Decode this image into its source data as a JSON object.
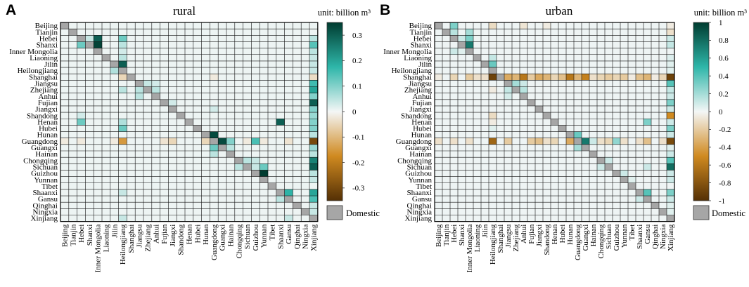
{
  "colors": {
    "domestic": "#a6a6a6",
    "grid": "#111111",
    "neg_max": "#543005",
    "neg_mid": "#d08a20",
    "zero": "#f4f6f6",
    "pos_mid": "#2eb6a9",
    "pos_max": "#003c30"
  },
  "legend": {
    "domestic_label": "Domestic"
  },
  "chart_data": [
    {
      "panel": "A",
      "title": "rural",
      "type": "heatmap",
      "unit": "unit: billion m³",
      "colorbar": {
        "min": -0.35,
        "max": 0.35,
        "ticks": [
          0.3,
          0.2,
          0.1,
          0,
          -0.1,
          -0.2,
          -0.3
        ],
        "tick_labels": [
          "0.3",
          "0.2",
          "0.1",
          "0",
          "-0.1",
          "-0.2",
          "-0.3"
        ]
      },
      "row_labels": [
        "Beijing",
        "Tianjin",
        "Hebei",
        "Shanxi",
        "Inner Mongolia",
        "Liaoning",
        "Jilin",
        "Heilongjiang",
        "Shanghai",
        "Jiangsu",
        "Zhejiang",
        "Anhui",
        "Fujian",
        "Jiangxi",
        "Shandong",
        "Henan",
        "Hubei",
        "Hunan",
        "Guangdong",
        "Guangxi",
        "Hainan",
        "Chongqing",
        "Sichuan",
        "Guizhou",
        "Yunnan",
        "Tibet",
        "Shaanxi",
        "Gansu",
        "Qinghai",
        "Ningxia",
        "Xinjiang"
      ],
      "col_labels": [
        "Beijing",
        "Tianjin",
        "Hebei",
        "Shanxi",
        "Inner Mongolia",
        "Liaoning",
        "Jilin",
        "Heilongjiang",
        "Shanghai",
        "Jiangsu",
        "Zhejiang",
        "Anhui",
        "Fujian",
        "Jiangxi",
        "Shandong",
        "Henan",
        "Hubei",
        "Hunan",
        "Guangdong",
        "Guangxi",
        "Hainan",
        "Chongqing",
        "Sichuan",
        "Guizhou",
        "Yunnan",
        "Tibet",
        "Shaanxi",
        "Gansu",
        "Qinghai",
        "Ningxia",
        "Xinjiang"
      ],
      "background_value": 0.006,
      "cells": [
        [
          "Hebei",
          "Shanxi",
          0.04
        ],
        [
          "Hebei",
          "Inner Mongolia",
          0.3
        ],
        [
          "Hebei",
          "Heilongjiang",
          0.12
        ],
        [
          "Hebei",
          "Xinjiang",
          0.05
        ],
        [
          "Shanxi",
          "Hebei",
          0.12
        ],
        [
          "Shanxi",
          "Inner Mongolia",
          0.34
        ],
        [
          "Shanxi",
          "Heilongjiang",
          0.05
        ],
        [
          "Shanxi",
          "Xinjiang",
          0.14
        ],
        [
          "Inner Mongolia",
          "Heilongjiang",
          0.03
        ],
        [
          "Inner Mongolia",
          "Xinjiang",
          0.05
        ],
        [
          "Liaoning",
          "Heilongjiang",
          0.05
        ],
        [
          "Liaoning",
          "Xinjiang",
          0.04
        ],
        [
          "Jilin",
          "Heilongjiang",
          0.3
        ],
        [
          "Jilin",
          "Xinjiang",
          0.04
        ],
        [
          "Heilongjiang",
          "Jilin",
          0.06
        ],
        [
          "Heilongjiang",
          "Xinjiang",
          0.04
        ],
        [
          "Shanghai",
          "Heilongjiang",
          -0.05
        ],
        [
          "Shanghai",
          "Xinjiang",
          -0.04
        ],
        [
          "Shanghai",
          "Guangdong",
          -0.02
        ],
        [
          "Jiangsu",
          "Zhejiang",
          0.04
        ],
        [
          "Jiangsu",
          "Anhui",
          0.03
        ],
        [
          "Jiangsu",
          "Xinjiang",
          0.16
        ],
        [
          "Zhejiang",
          "Jiangsu",
          0.05
        ],
        [
          "Zhejiang",
          "Anhui",
          0.05
        ],
        [
          "Zhejiang",
          "Heilongjiang",
          0.05
        ],
        [
          "Zhejiang",
          "Xinjiang",
          0.2
        ],
        [
          "Anhui",
          "Jiangsu",
          0.05
        ],
        [
          "Anhui",
          "Xinjiang",
          0.1
        ],
        [
          "Fujian",
          "Xinjiang",
          0.3
        ],
        [
          "Fujian",
          "Jiangxi",
          0.03
        ],
        [
          "Jiangxi",
          "Xinjiang",
          0.1
        ],
        [
          "Jiangxi",
          "Guangdong",
          0.03
        ],
        [
          "Shandong",
          "Xinjiang",
          0.08
        ],
        [
          "Shandong",
          "Hebei",
          0.03
        ],
        [
          "Henan",
          "Hebei",
          0.12
        ],
        [
          "Henan",
          "Heilongjiang",
          0.06
        ],
        [
          "Henan",
          "Shaanxi",
          0.3
        ],
        [
          "Henan",
          "Xinjiang",
          0.1
        ],
        [
          "Hubei",
          "Heilongjiang",
          0.12
        ],
        [
          "Hubei",
          "Xinjiang",
          0.1
        ],
        [
          "Hunan",
          "Guangdong",
          0.33
        ],
        [
          "Hunan",
          "Xinjiang",
          0.05
        ],
        [
          "Guangdong",
          "Heilongjiang",
          -0.15
        ],
        [
          "Guangdong",
          "Guangxi",
          0.33
        ],
        [
          "Guangdong",
          "Hainan",
          0.1
        ],
        [
          "Guangdong",
          "Guizhou",
          0.15
        ],
        [
          "Guangdong",
          "Xinjiang",
          -0.3
        ],
        [
          "Guangdong",
          "Hunan",
          -0.05
        ],
        [
          "Guangdong",
          "Jiangxi",
          -0.05
        ],
        [
          "Guangdong",
          "Beijing",
          -0.02
        ],
        [
          "Guangdong",
          "Hebei",
          -0.02
        ],
        [
          "Guangdong",
          "Fujian",
          -0.03
        ],
        [
          "Guangdong",
          "Yunnan",
          -0.02
        ],
        [
          "Guangdong",
          "Gansu",
          -0.03
        ],
        [
          "Guangdong",
          "Sichuan",
          -0.02
        ],
        [
          "Guangdong",
          "Jilin",
          -0.02
        ],
        [
          "Guangxi",
          "Guangdong",
          0.12
        ],
        [
          "Guangxi",
          "Hainan",
          0.05
        ],
        [
          "Guangxi",
          "Xinjiang",
          0.08
        ],
        [
          "Hainan",
          "Xinjiang",
          0.05
        ],
        [
          "Hainan",
          "Guangdong",
          0.05
        ],
        [
          "Chongqing",
          "Xinjiang",
          0.25
        ],
        [
          "Chongqing",
          "Sichuan",
          0.05
        ],
        [
          "Chongqing",
          "Guizhou",
          0.04
        ],
        [
          "Sichuan",
          "Xinjiang",
          0.3
        ],
        [
          "Sichuan",
          "Yunnan",
          0.12
        ],
        [
          "Sichuan",
          "Guizhou",
          0.04
        ],
        [
          "Sichuan",
          "Chongqing",
          0.05
        ],
        [
          "Guizhou",
          "Yunnan",
          0.35
        ],
        [
          "Guizhou",
          "Xinjiang",
          0.05
        ],
        [
          "Yunnan",
          "Xinjiang",
          0.04
        ],
        [
          "Shaanxi",
          "Gansu",
          0.18
        ],
        [
          "Shaanxi",
          "Xinjiang",
          0.2
        ],
        [
          "Shaanxi",
          "Heilongjiang",
          0.04
        ],
        [
          "Gansu",
          "Xinjiang",
          0.15
        ],
        [
          "Gansu",
          "Shaanxi",
          0.05
        ],
        [
          "Qinghai",
          "Xinjiang",
          0.04
        ],
        [
          "Ningxia",
          "Xinjiang",
          0.04
        ],
        [
          "Xinjiang",
          "Heilongjiang",
          0.04
        ],
        [
          "Xinjiang",
          "Gansu",
          0.04
        ]
      ]
    },
    {
      "panel": "B",
      "title": "urban",
      "type": "heatmap",
      "unit": "unit: billion m³",
      "colorbar": {
        "min": -1,
        "max": 1,
        "ticks": [
          1,
          0.8,
          0.6,
          0.4,
          0.2,
          0,
          -0.2,
          -0.4,
          -0.6,
          -0.8,
          -1
        ],
        "tick_labels": [
          "1",
          "0.8",
          "0.6",
          "0.4",
          "0.2",
          "0",
          "-0.2",
          "-0.4",
          "-0.6",
          "-0.8",
          "-1"
        ]
      },
      "row_labels": [
        "Beijing",
        "Tianjin",
        "Hebei",
        "Shanxi",
        "Inner Mongolia",
        "Liaoning",
        "Jilin",
        "Heilongjiang",
        "Shanghai",
        "Jiangsu",
        "Zhejiang",
        "Anhui",
        "Fujian",
        "Jiangxi",
        "Shandong",
        "Henan",
        "Hubei",
        "Hunan",
        "Guangdong",
        "Guangxi",
        "Hainan",
        "Chongqing",
        "Sichuan",
        "Guizhou",
        "Yunnan",
        "Tibet",
        "Shaanxi",
        "Gansu",
        "Qinghai",
        "Ningxia",
        "Xinjiang"
      ],
      "col_labels": [
        "Beijing",
        "Tianjin",
        "Hebei",
        "Shanxi",
        "Inner Mongolia",
        "Liaoning",
        "Jilin",
        "Heilongjiang",
        "Shanghai",
        "Jiangsu",
        "Zhejiang",
        "Anhui",
        "Fujian",
        "Jiangxi",
        "Shandong",
        "Henan",
        "Hubei",
        "Hunan",
        "Guangdong",
        "Guangxi",
        "Hainan",
        "Chongqing",
        "Sichuan",
        "Guizhou",
        "Yunnan",
        "Tibet",
        "Shaanxi",
        "Gansu",
        "Qinghai",
        "Ningxia",
        "Xinjiang"
      ],
      "background_value": 0.015,
      "cells": [
        [
          "Beijing",
          "Hebei",
          0.3
        ],
        [
          "Beijing",
          "Heilongjiang",
          -0.12
        ],
        [
          "Beijing",
          "Anhui",
          -0.08
        ],
        [
          "Beijing",
          "Shandong",
          -0.05
        ],
        [
          "Beijing",
          "Xinjiang",
          -0.05
        ],
        [
          "Tianjin",
          "Inner Mongolia",
          0.2
        ],
        [
          "Tianjin",
          "Hebei",
          0.15
        ],
        [
          "Tianjin",
          "Xinjiang",
          -0.1
        ],
        [
          "Hebei",
          "Inner Mongolia",
          0.3
        ],
        [
          "Hebei",
          "Shanxi",
          0.1
        ],
        [
          "Hebei",
          "Xinjiang",
          0.1
        ],
        [
          "Shanxi",
          "Inner Mongolia",
          0.75
        ],
        [
          "Shanxi",
          "Xinjiang",
          0.12
        ],
        [
          "Inner Mongolia",
          "Hebei",
          0.1
        ],
        [
          "Inner Mongolia",
          "Shanxi",
          0.05
        ],
        [
          "Liaoning",
          "Heilongjiang",
          0.12
        ],
        [
          "Liaoning",
          "Xinjiang",
          0.06
        ],
        [
          "Jilin",
          "Heilongjiang",
          0.35
        ],
        [
          "Jilin",
          "Xinjiang",
          0.05
        ],
        [
          "Heilongjiang",
          "Xinjiang",
          0.05
        ],
        [
          "Shanghai",
          "Heilongjiang",
          -0.9
        ],
        [
          "Shanghai",
          "Jiangsu",
          -0.35
        ],
        [
          "Shanghai",
          "Zhejiang",
          -0.3
        ],
        [
          "Shanghai",
          "Anhui",
          -0.6
        ],
        [
          "Shanghai",
          "Fujian",
          -0.2
        ],
        [
          "Shanghai",
          "Jiangxi",
          -0.35
        ],
        [
          "Shanghai",
          "Shandong",
          -0.3
        ],
        [
          "Shanghai",
          "Henan",
          -0.15
        ],
        [
          "Shanghai",
          "Hubei",
          -0.25
        ],
        [
          "Shanghai",
          "Hunan",
          -0.6
        ],
        [
          "Shanghai",
          "Guangdong",
          -0.3
        ],
        [
          "Shanghai",
          "Guangxi",
          -0.55
        ],
        [
          "Shanghai",
          "Hainan",
          -0.1
        ],
        [
          "Shanghai",
          "Chongqing",
          -0.15
        ],
        [
          "Shanghai",
          "Sichuan",
          -0.2
        ],
        [
          "Shanghai",
          "Guizhou",
          -0.15
        ],
        [
          "Shanghai",
          "Yunnan",
          -0.2
        ],
        [
          "Shanghai",
          "Tibet",
          -0.05
        ],
        [
          "Shanghai",
          "Shaanxi",
          -0.25
        ],
        [
          "Shanghai",
          "Gansu",
          -0.3
        ],
        [
          "Shanghai",
          "Qinghai",
          -0.05
        ],
        [
          "Shanghai",
          "Ningxia",
          -0.15
        ],
        [
          "Shanghai",
          "Xinjiang",
          -0.9
        ],
        [
          "Shanghai",
          "Hebei",
          -0.15
        ],
        [
          "Shanghai",
          "Beijing",
          -0.05
        ],
        [
          "Shanghai",
          "Inner Mongolia",
          -0.2
        ],
        [
          "Shanghai",
          "Jilin",
          -0.1
        ],
        [
          "Shanghai",
          "Liaoning",
          -0.1
        ],
        [
          "Jiangsu",
          "Zhejiang",
          0.2
        ],
        [
          "Jiangsu",
          "Anhui",
          0.1
        ],
        [
          "Jiangsu",
          "Xinjiang",
          0.4
        ],
        [
          "Zhejiang",
          "Jiangsu",
          0.12
        ],
        [
          "Zhejiang",
          "Anhui",
          0.15
        ],
        [
          "Zhejiang",
          "Heilongjiang",
          -0.05
        ],
        [
          "Zhejiang",
          "Xinjiang",
          0.12
        ],
        [
          "Anhui",
          "Jiangsu",
          0.08
        ],
        [
          "Anhui",
          "Xinjiang",
          0.1
        ],
        [
          "Fujian",
          "Xinjiang",
          0.3
        ],
        [
          "Jiangxi",
          "Xinjiang",
          0.1
        ],
        [
          "Shandong",
          "Heilongjiang",
          -0.12
        ],
        [
          "Shandong",
          "Xinjiang",
          -0.5
        ],
        [
          "Henan",
          "Heilongjiang",
          -0.05
        ],
        [
          "Henan",
          "Gansu",
          0.3
        ],
        [
          "Henan",
          "Xinjiang",
          0.1
        ],
        [
          "Hubei",
          "Xinjiang",
          0.3
        ],
        [
          "Hubei",
          "Heilongjiang",
          0.05
        ],
        [
          "Hunan",
          "Guangdong",
          0.35
        ],
        [
          "Hunan",
          "Xinjiang",
          0.1
        ],
        [
          "Guangdong",
          "Heilongjiang",
          -0.7
        ],
        [
          "Guangdong",
          "Guangxi",
          0.75
        ],
        [
          "Guangdong",
          "Guizhou",
          0.25
        ],
        [
          "Guangdong",
          "Xinjiang",
          -0.85
        ],
        [
          "Guangdong",
          "Hunan",
          -0.35
        ],
        [
          "Guangdong",
          "Jiangxi",
          -0.25
        ],
        [
          "Guangdong",
          "Fujian",
          -0.2
        ],
        [
          "Guangdong",
          "Jiangsu",
          -0.2
        ],
        [
          "Guangdong",
          "Hainan",
          0.1
        ],
        [
          "Guangdong",
          "Gansu",
          -0.25
        ],
        [
          "Guangdong",
          "Shaanxi",
          -0.1
        ],
        [
          "Guangdong",
          "Sichuan",
          -0.15
        ],
        [
          "Guangdong",
          "Beijing",
          -0.1
        ],
        [
          "Guangdong",
          "Hebei",
          -0.1
        ],
        [
          "Guangdong",
          "Henan",
          -0.15
        ],
        [
          "Guangdong",
          "Shandong",
          -0.1
        ],
        [
          "Guangdong",
          "Chongqing",
          -0.1
        ],
        [
          "Guangdong",
          "Yunnan",
          -0.1
        ],
        [
          "Guangdong",
          "Ningxia",
          -0.1
        ],
        [
          "Guangdong",
          "Inner Mongolia",
          -0.1
        ],
        [
          "Guangxi",
          "Guangdong",
          0.2
        ],
        [
          "Guangxi",
          "Xinjiang",
          0.05
        ],
        [
          "Hainan",
          "Xinjiang",
          0.1
        ],
        [
          "Chongqing",
          "Xinjiang",
          0.4
        ],
        [
          "Chongqing",
          "Sichuan",
          0.1
        ],
        [
          "Sichuan",
          "Xinjiang",
          0.8
        ],
        [
          "Sichuan",
          "Gansu",
          0.1
        ],
        [
          "Sichuan",
          "Chongqing",
          0.1
        ],
        [
          "Guizhou",
          "Xinjiang",
          0.1
        ],
        [
          "Guizhou",
          "Yunnan",
          0.1
        ],
        [
          "Yunnan",
          "Xinjiang",
          0.1
        ],
        [
          "Yunnan",
          "Tibet",
          0.05
        ],
        [
          "Shaanxi",
          "Gansu",
          0.4
        ],
        [
          "Shaanxi",
          "Xinjiang",
          0.3
        ],
        [
          "Gansu",
          "Xinjiang",
          0.1
        ],
        [
          "Gansu",
          "Shaanxi",
          0.1
        ],
        [
          "Qinghai",
          "Xinjiang",
          0.05
        ],
        [
          "Ningxia",
          "Xinjiang",
          0.05
        ]
      ]
    }
  ]
}
